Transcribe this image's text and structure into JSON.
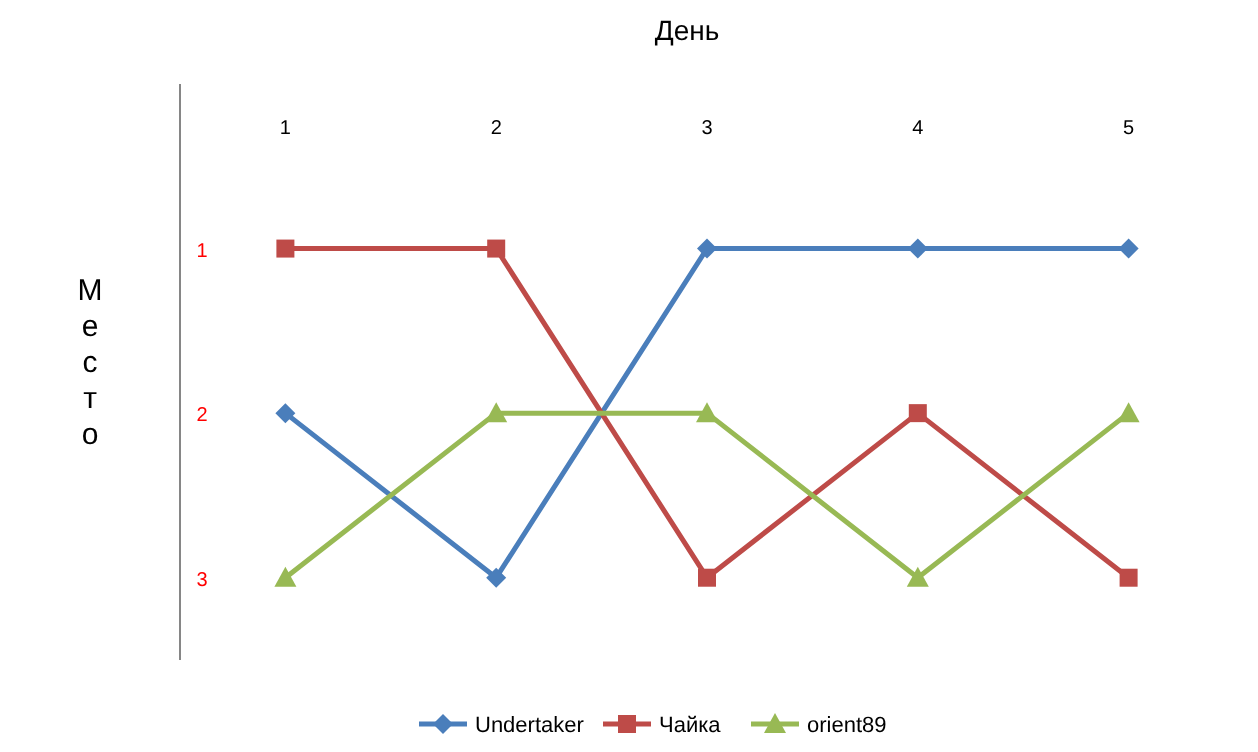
{
  "chart_data": {
    "type": "line",
    "xlabel": "День",
    "ylabel": "Место",
    "categories": [
      "1",
      "2",
      "3",
      "4",
      "5"
    ],
    "ylim": [
      3.5,
      0
    ],
    "yticks": [
      1,
      2,
      3
    ],
    "grid": false,
    "legend": "bottom",
    "line_style": "solid",
    "series": [
      {
        "name": "Undertaker",
        "color": "#4a7ebb",
        "marker": "diamond",
        "values": [
          2,
          3,
          1,
          1,
          1
        ]
      },
      {
        "name": "Чайка",
        "color": "#be4b48",
        "marker": "square",
        "values": [
          1,
          1,
          3,
          2,
          3
        ]
      },
      {
        "name": "orient89",
        "color": "#98b954",
        "marker": "triangle",
        "values": [
          3,
          2,
          2,
          3,
          2
        ]
      }
    ]
  }
}
